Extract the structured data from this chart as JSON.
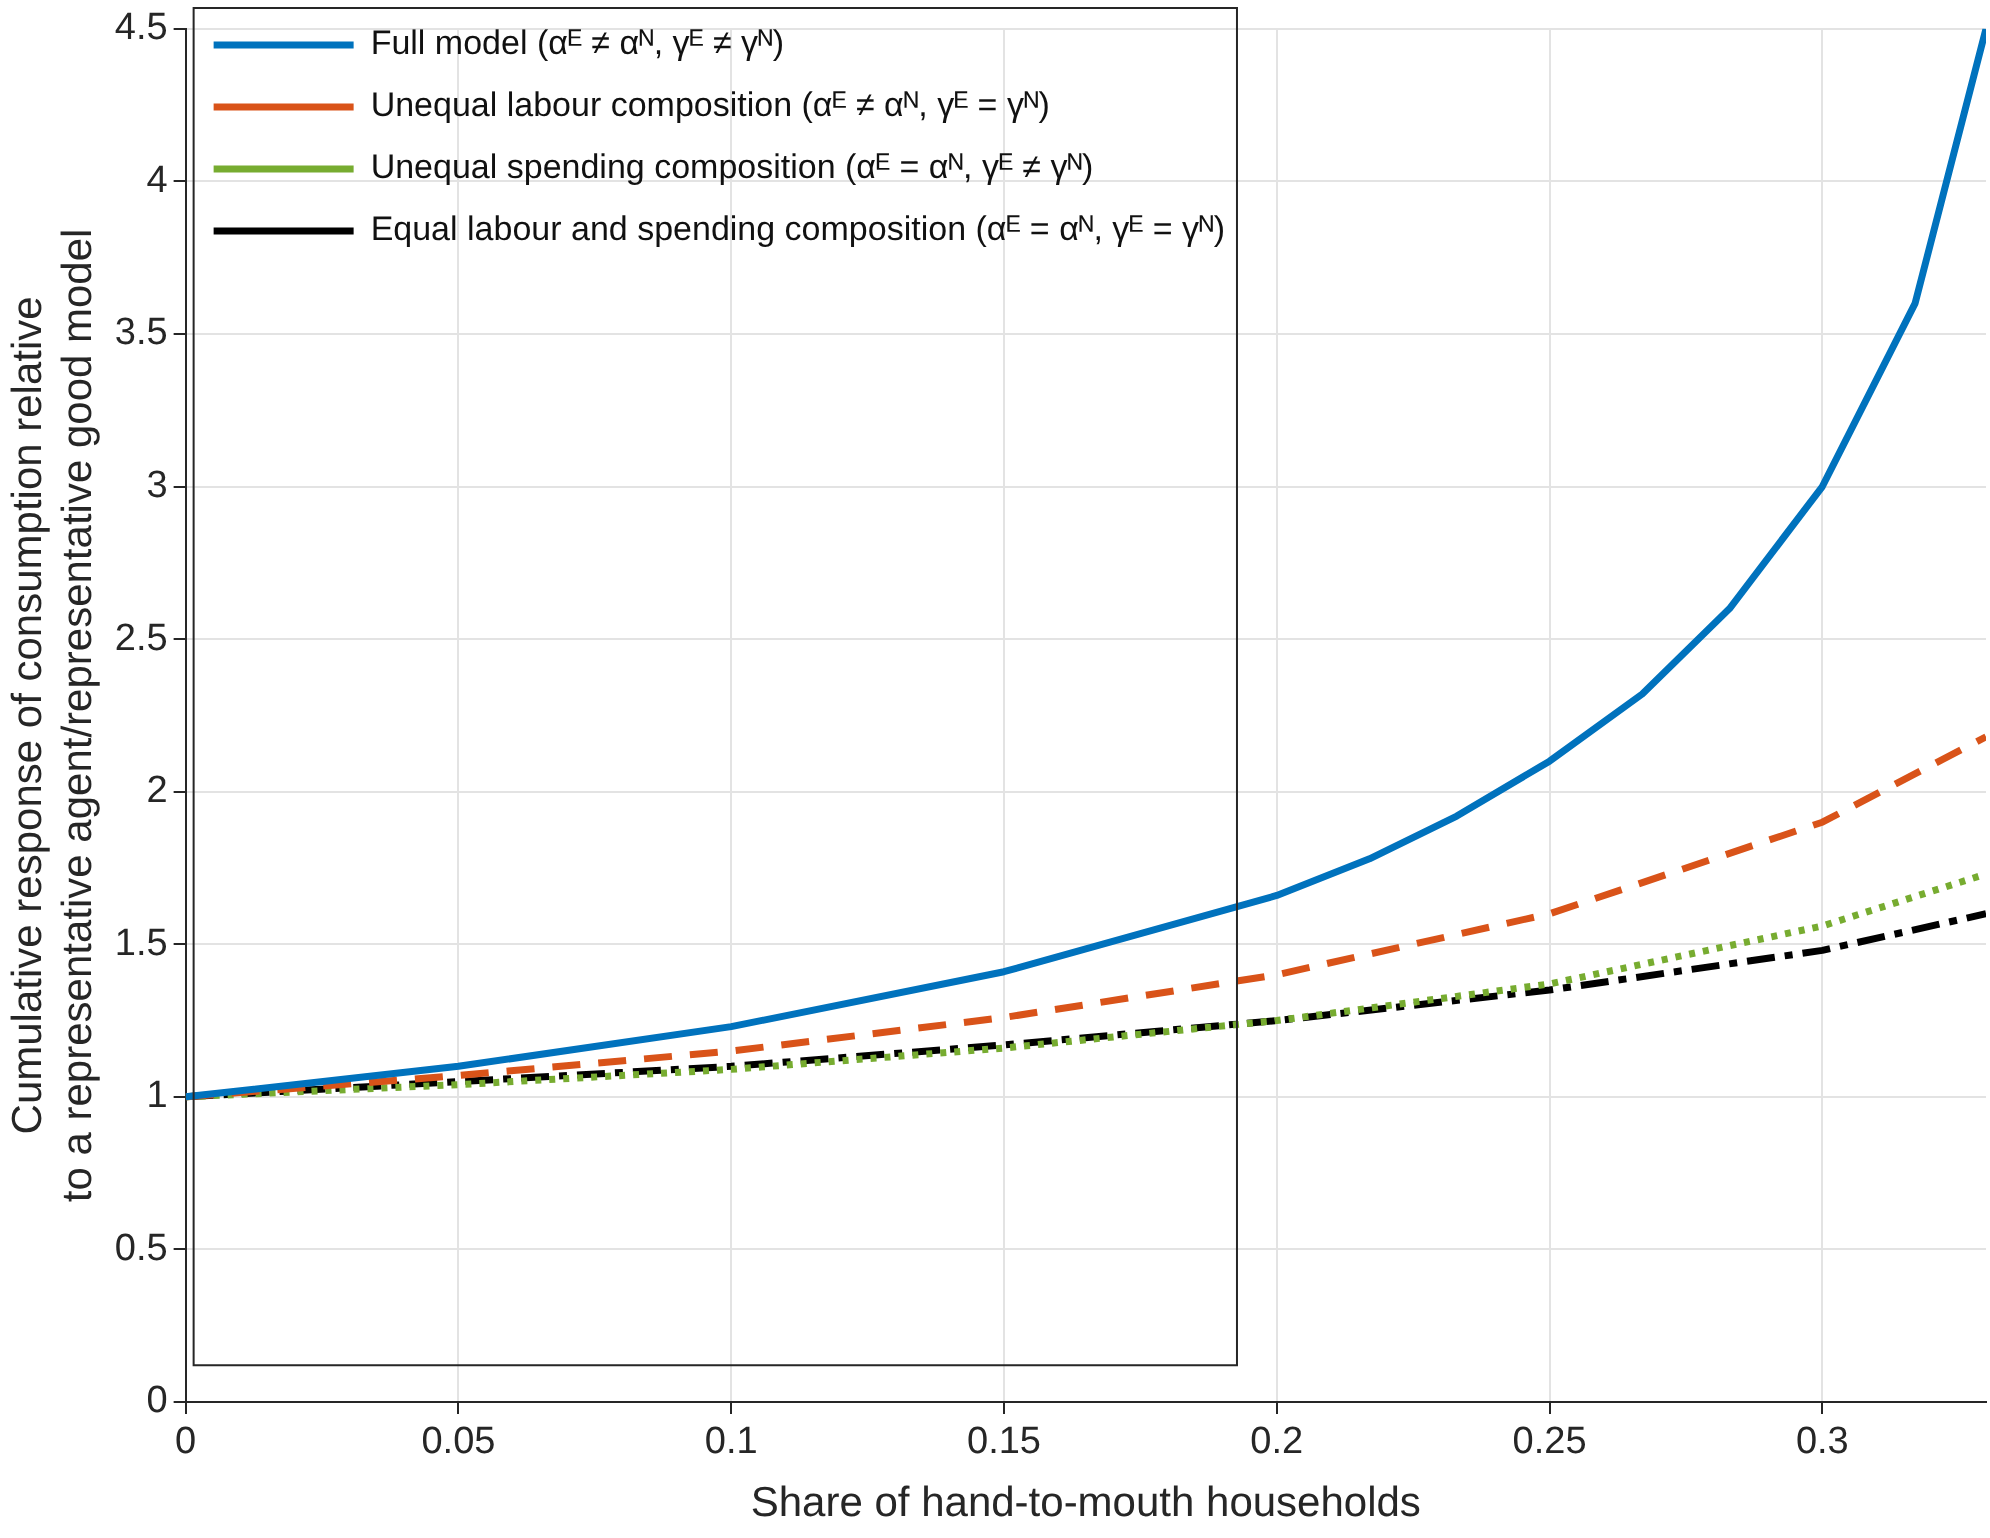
{
  "chart_data": {
    "type": "line",
    "xlabel": "Share of hand-to-mouth households",
    "ylabel": "Cumulative response of consumption relative to a representative agent/representative good model",
    "xlim": [
      0,
      0.33
    ],
    "xticks": [
      0,
      0.05,
      0.1,
      0.15,
      0.2,
      0.25,
      0.3
    ],
    "ylim": [
      0,
      4.5
    ],
    "yticks": [
      0,
      0.5,
      1,
      1.5,
      2,
      2.5,
      3,
      3.5,
      4,
      4.5
    ],
    "grid": true,
    "legend": "top left",
    "marker": "none",
    "series": [
      {
        "name": "Full model (αᴱ ≠ αᴺ, γᴱ ≠ γᴺ)",
        "color": "#0072bd",
        "line_style": "solid",
        "x": [
          0,
          0.05,
          0.1,
          0.15,
          0.2,
          0.217,
          0.233,
          0.25,
          0.267,
          0.283,
          0.3,
          0.317,
          0.33
        ],
        "values": [
          1,
          1.1,
          1.23,
          1.41,
          1.66,
          1.78,
          1.92,
          2.1,
          2.32,
          2.6,
          3.0,
          3.6,
          4.5
        ]
      },
      {
        "name": "Unequal labour composition (αᴱ ≠ αᴺ, γᴱ = γᴺ)",
        "color": "#d95319",
        "line_style": "dashed",
        "x": [
          0,
          0.05,
          0.1,
          0.15,
          0.2,
          0.25,
          0.3,
          0.33
        ],
        "values": [
          1,
          1.07,
          1.15,
          1.26,
          1.4,
          1.6,
          1.9,
          2.18
        ]
      },
      {
        "name": "Unequal spending composition (αᴱ = αᴺ, γᴱ ≠ γᴺ)",
        "color": "#77ac30",
        "line_style": "dotted",
        "x": [
          0,
          0.05,
          0.1,
          0.15,
          0.2,
          0.25,
          0.3,
          0.33
        ],
        "values": [
          1,
          1.04,
          1.09,
          1.16,
          1.25,
          1.37,
          1.56,
          1.73
        ]
      },
      {
        "name": "Equal labour and spending composition (αᴱ = αᴺ, γᴱ = γᴺ)",
        "color": "#000000",
        "line_style": "dashdot",
        "x": [
          0,
          0.05,
          0.1,
          0.15,
          0.2,
          0.25,
          0.3,
          0.33
        ],
        "values": [
          1,
          1.05,
          1.1,
          1.17,
          1.25,
          1.35,
          1.48,
          1.6
        ]
      }
    ]
  }
}
